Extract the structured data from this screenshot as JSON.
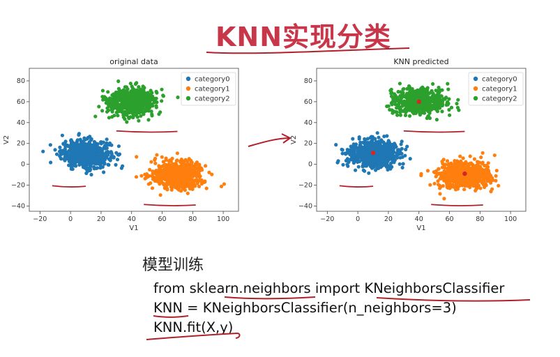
{
  "slide": {
    "title": "KNN实现分类",
    "section_heading": "模型训练",
    "code_lines": [
      "from sklearn.neighbors import KNeighborsClassifier",
      "KNN = KNeighborsClassifier(n_neighbors=3)",
      "KNN.fit(X,y)"
    ]
  },
  "colors": {
    "title": "#c8364a",
    "annotation_ink": "#b0202a",
    "category0": "#1f77b4",
    "category1": "#ff7f0e",
    "category2": "#2ca02c",
    "center_marker": "#d62728"
  },
  "chart_data": [
    {
      "type": "scatter",
      "title": "original data",
      "xlabel": "V1",
      "ylabel": "V2",
      "xlim": [
        -27,
        110
      ],
      "ylim": [
        -45,
        92
      ],
      "xticks": [
        -20,
        0,
        20,
        40,
        60,
        80,
        100
      ],
      "yticks": [
        -40,
        -20,
        0,
        20,
        40,
        60,
        80
      ],
      "grid": false,
      "legend_position": "top-right",
      "series": [
        {
          "name": "category0",
          "center": [
            10,
            10
          ],
          "spread": [
            8,
            6.5
          ]
        },
        {
          "name": "category1",
          "center": [
            70,
            -10
          ],
          "spread": [
            8.5,
            6.5
          ]
        },
        {
          "name": "category2",
          "center": [
            40,
            60
          ],
          "spread": [
            8,
            6
          ]
        }
      ]
    },
    {
      "type": "scatter",
      "title": "KNN predicted",
      "xlabel": "V1",
      "ylabel": "V2",
      "xlim": [
        -27,
        110
      ],
      "ylim": [
        -45,
        92
      ],
      "xticks": [
        -20,
        0,
        20,
        40,
        60,
        80,
        100
      ],
      "yticks": [
        -40,
        -20,
        0,
        20,
        40,
        60,
        80
      ],
      "grid": false,
      "legend_position": "top-right",
      "series": [
        {
          "name": "category0",
          "center": [
            10,
            10
          ],
          "spread": [
            8,
            6.5
          ]
        },
        {
          "name": "category1",
          "center": [
            70,
            -10
          ],
          "spread": [
            8.5,
            6.5
          ]
        },
        {
          "name": "category2",
          "center": [
            40,
            60
          ],
          "spread": [
            8,
            6
          ]
        }
      ],
      "centers": [
        {
          "label": "category0",
          "x": 10,
          "y": 11
        },
        {
          "label": "category1",
          "x": 70,
          "y": -9
        },
        {
          "label": "category2",
          "x": 40,
          "y": 60
        }
      ]
    }
  ]
}
